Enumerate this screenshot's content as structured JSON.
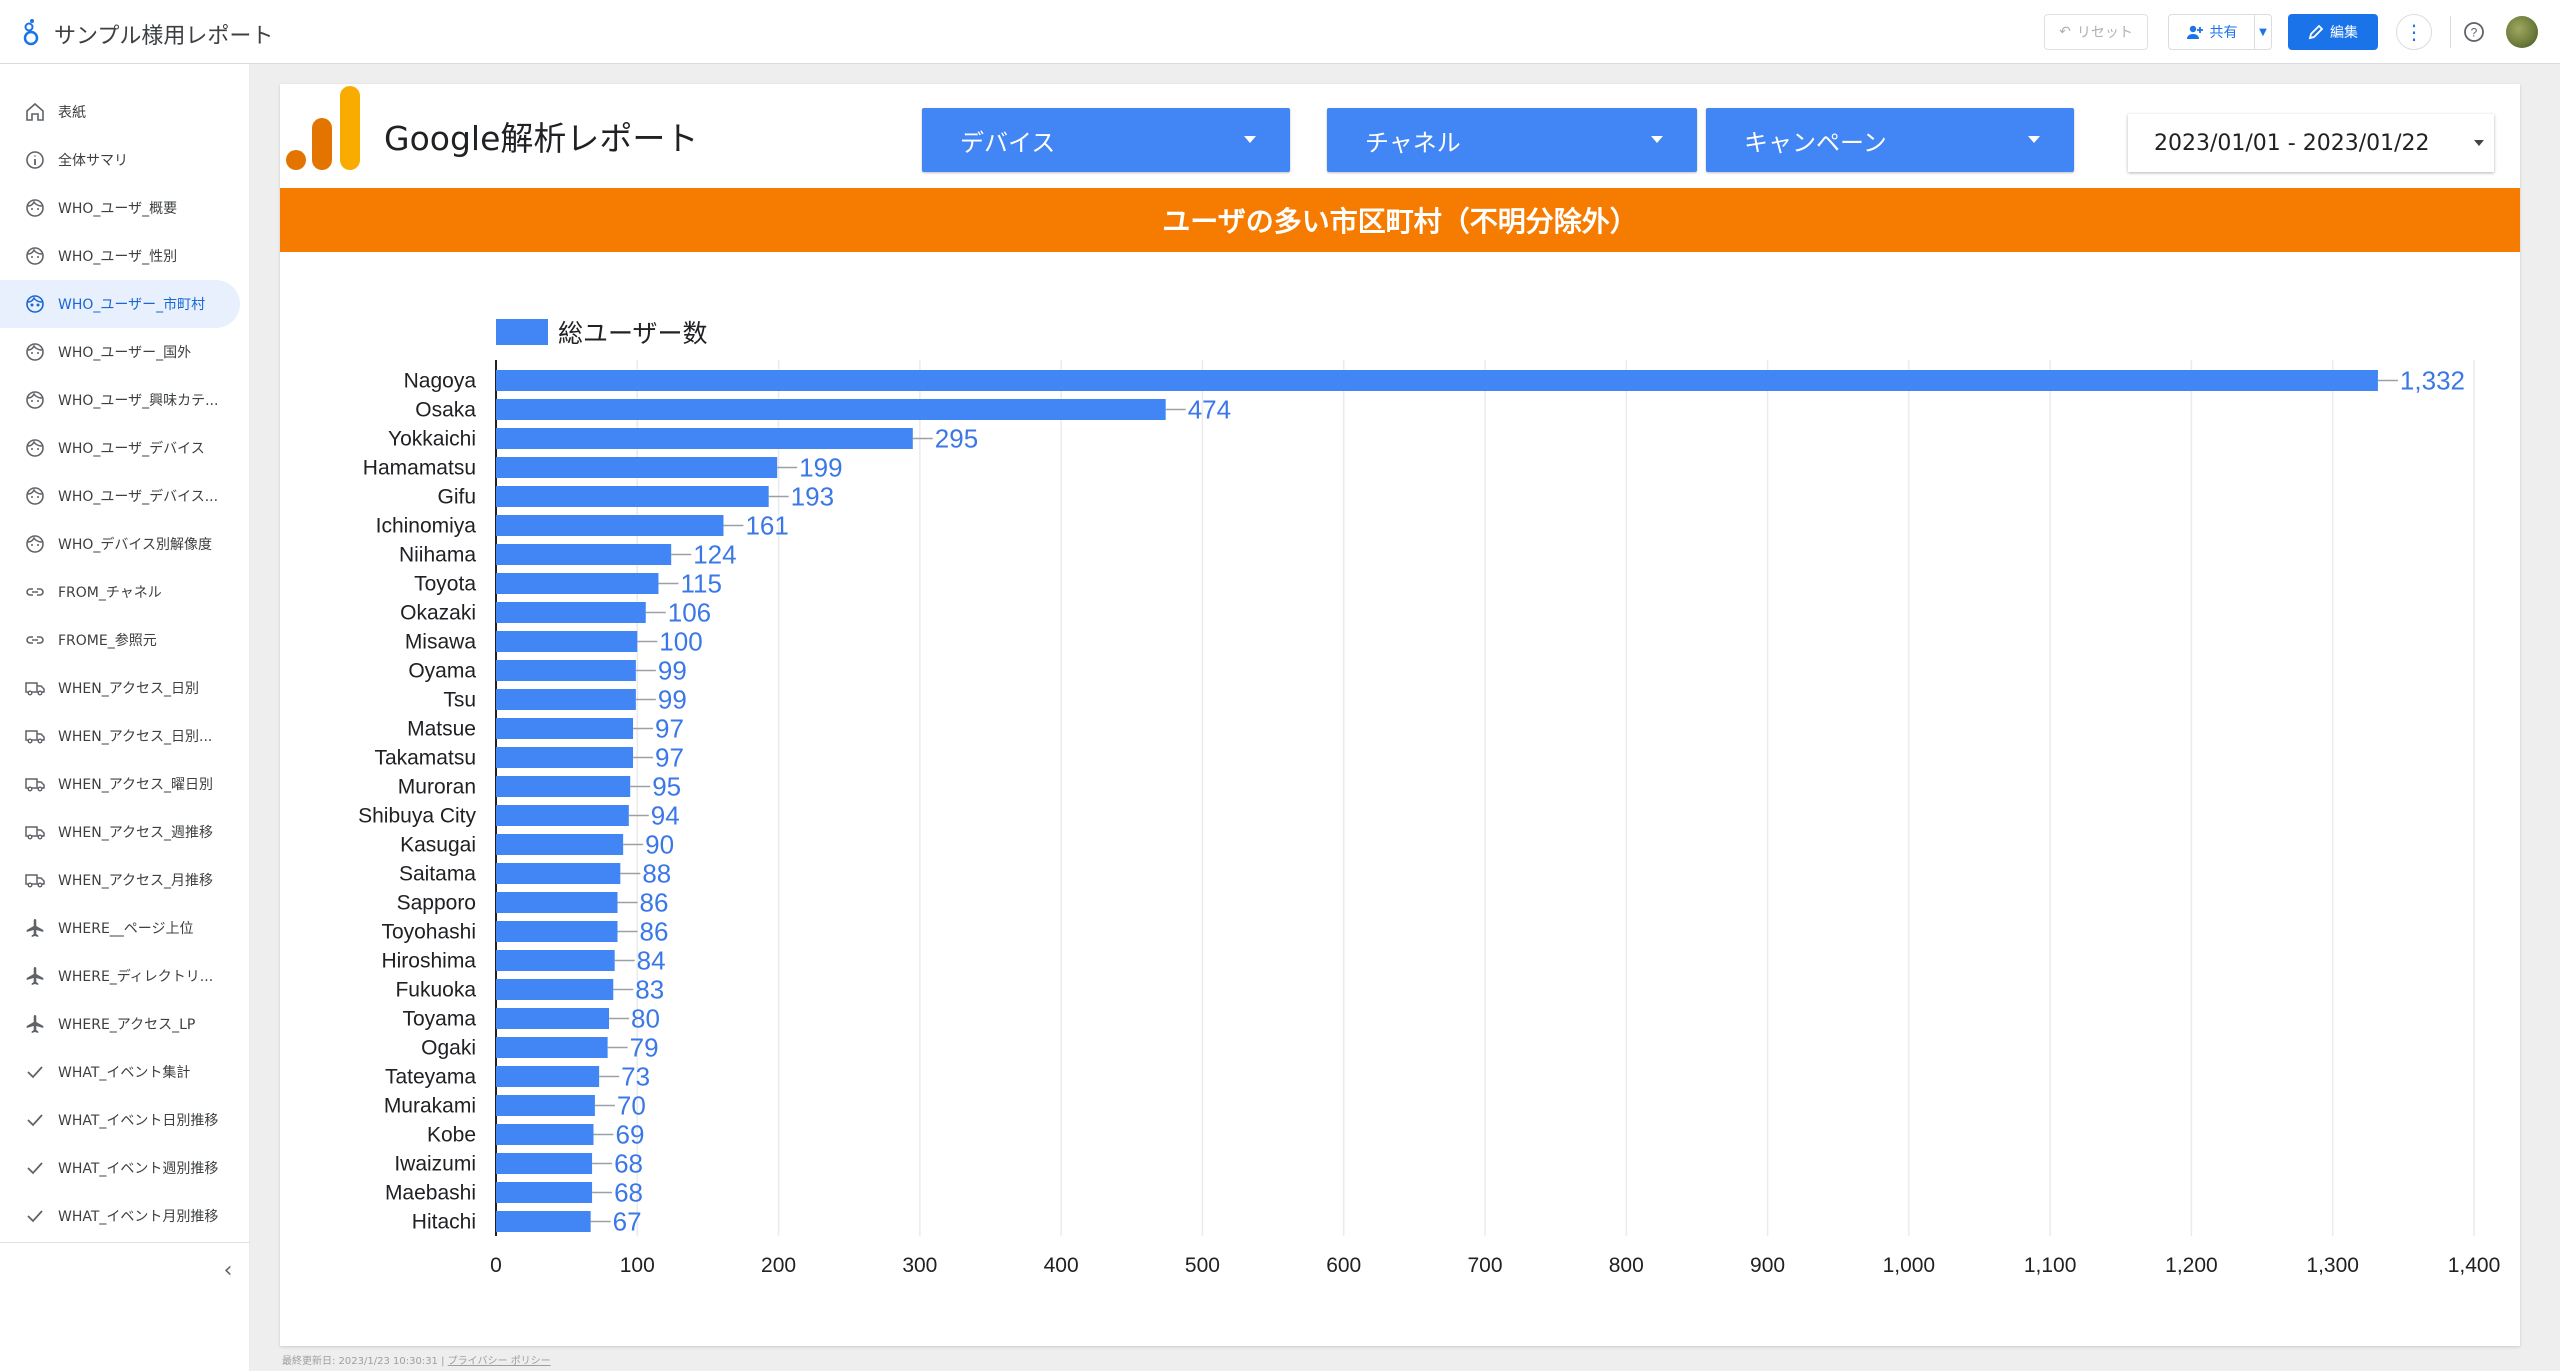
{
  "app": {
    "title": "サンプル様用レポート"
  },
  "toolbar": {
    "reset_label": "リセット",
    "share_label": "共有",
    "edit_label": "編集"
  },
  "sidebar": {
    "items": [
      {
        "label": "表紙",
        "icon": "home-icon"
      },
      {
        "label": "全体サマリ",
        "icon": "info-icon"
      },
      {
        "label": "WHO_ユーザ_概要",
        "icon": "face-icon"
      },
      {
        "label": "WHO_ユーザ_性別",
        "icon": "face-icon"
      },
      {
        "label": "WHO_ユーザー_市町村",
        "icon": "face-icon",
        "active": true
      },
      {
        "label": "WHO_ユーザー_国外",
        "icon": "face-icon"
      },
      {
        "label": "WHO_ユーザ_興味カテ...",
        "icon": "face-icon"
      },
      {
        "label": "WHO_ユーザ_デバイス",
        "icon": "face-icon"
      },
      {
        "label": "WHO_ユーザ_デバイス...",
        "icon": "face-icon"
      },
      {
        "label": "WHO_デバイス別解像度",
        "icon": "face-icon"
      },
      {
        "label": "FROM_チャネル",
        "icon": "link-icon"
      },
      {
        "label": "FROME_参照元",
        "icon": "link-icon"
      },
      {
        "label": "WHEN_アクセス_日別",
        "icon": "truck-icon"
      },
      {
        "label": "WHEN_アクセス_日別...",
        "icon": "truck-icon"
      },
      {
        "label": "WHEN_アクセス_曜日別",
        "icon": "truck-icon"
      },
      {
        "label": "WHEN_アクセス_週推移",
        "icon": "truck-icon"
      },
      {
        "label": "WHEN_アクセス_月推移",
        "icon": "truck-icon"
      },
      {
        "label": "WHERE__ページ上位",
        "icon": "airplane-icon"
      },
      {
        "label": "WHERE_ディレクトリ...",
        "icon": "airplane-icon"
      },
      {
        "label": "WHERE_アクセス_LP",
        "icon": "airplane-icon"
      },
      {
        "label": "WHAT_イベント集計",
        "icon": "check-icon"
      },
      {
        "label": "WHAT_イベント日別推移",
        "icon": "check-icon"
      },
      {
        "label": "WHAT_イベント週別推移",
        "icon": "check-icon"
      },
      {
        "label": "WHAT_イベント月別推移",
        "icon": "check-icon"
      }
    ]
  },
  "report": {
    "title": "Google解析レポート",
    "filters": {
      "device": "デバイス",
      "channel": "チャネル",
      "campaign": "キャンペーン"
    },
    "date_range": "2023/01/01 - 2023/01/22",
    "banner": "ユーザの多い市区町村（不明分除外）",
    "footer_updated": "最終更新日: 2023/1/23 10:30:31",
    "footer_privacy": "プライバシー ポリシー"
  },
  "colors": {
    "bar": "#4285f4",
    "label": "#3b78e7",
    "banner": "#f57c00",
    "accent": "#1a73e8"
  },
  "chart_data": {
    "type": "bar",
    "orientation": "horizontal",
    "categories": [
      "Nagoya",
      "Osaka",
      "Yokkaichi",
      "Hamamatsu",
      "Gifu",
      "Ichinomiya",
      "Niihama",
      "Toyota",
      "Okazaki",
      "Misawa",
      "Oyama",
      "Tsu",
      "Matsue",
      "Takamatsu",
      "Muroran",
      "Shibuya City",
      "Kasugai",
      "Saitama",
      "Sapporo",
      "Toyohashi",
      "Hiroshima",
      "Fukuoka",
      "Toyama",
      "Ogaki",
      "Tateyama",
      "Murakami",
      "Kobe",
      "Iwaizumi",
      "Maebashi",
      "Hitachi"
    ],
    "series": [
      {
        "name": "総ユーザー数",
        "values": [
          1332,
          474,
          295,
          199,
          193,
          161,
          124,
          115,
          106,
          100,
          99,
          99,
          97,
          97,
          95,
          94,
          90,
          88,
          86,
          86,
          84,
          83,
          80,
          79,
          73,
          70,
          69,
          68,
          68,
          67
        ]
      }
    ],
    "value_labels": [
      "1,332",
      "474",
      "295",
      "199",
      "193",
      "161",
      "124",
      "115",
      "106",
      "100",
      "99",
      "99",
      "97",
      "97",
      "95",
      "94",
      "90",
      "88",
      "86",
      "86",
      "84",
      "83",
      "80",
      "79",
      "73",
      "70",
      "69",
      "68",
      "68",
      "67"
    ],
    "xlim": [
      0,
      1400
    ],
    "xticks": [
      0,
      100,
      200,
      300,
      400,
      500,
      600,
      700,
      800,
      900,
      1000,
      1100,
      1200,
      1300,
      1400
    ],
    "xtick_labels": [
      "0",
      "100",
      "200",
      "300",
      "400",
      "500",
      "600",
      "700",
      "800",
      "900",
      "1,000",
      "1,100",
      "1,200",
      "1,300",
      "1,400"
    ],
    "grid": true,
    "legend_position": "top-left"
  }
}
